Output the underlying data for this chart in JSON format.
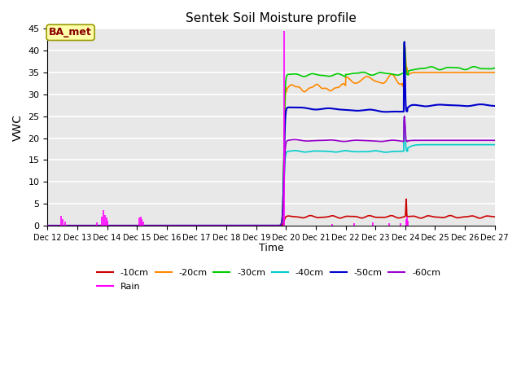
{
  "title": "Sentek Soil Moisture profile",
  "ylabel": "VWC",
  "xlabel": "Time",
  "annotation": "BA_met",
  "ylim": [
    0,
    45
  ],
  "plot_bg": "#e8e8e8",
  "colors": {
    "-10cm": "#cc0000",
    "-20cm": "#ff8800",
    "-30cm": "#00cc00",
    "-40cm": "#00cccc",
    "-50cm": "#0000cc",
    "-60cm": "#9900cc",
    "Rain": "#ff00ff"
  },
  "x_ticks": [
    12,
    13,
    14,
    15,
    16,
    17,
    18,
    19,
    20,
    21,
    22,
    23,
    24,
    25,
    26,
    27
  ],
  "x_tick_labels": [
    "Dec 12",
    "Dec 13",
    "Dec 14",
    "Dec 15",
    "Dec 16",
    "Dec 17",
    "Dec 18",
    "Dec 19",
    "Dec 20",
    "Dec 21",
    "Dec 22",
    "Dec 23",
    "Dec 24",
    "Dec 25",
    "Dec 26",
    "Dec 27"
  ],
  "yticks": [
    0,
    5,
    10,
    15,
    20,
    25,
    30,
    35,
    40,
    45
  ]
}
